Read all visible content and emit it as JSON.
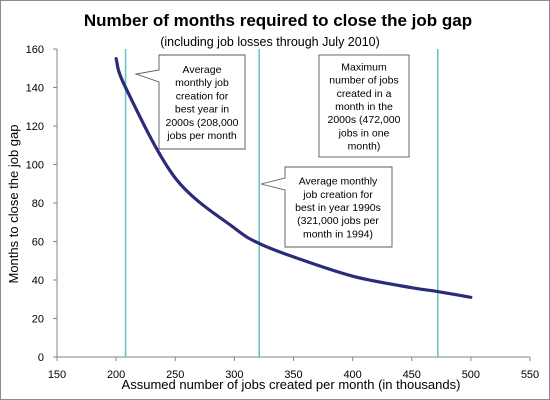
{
  "chart_data": {
    "type": "line",
    "title": "Number of months required to close the job gap",
    "subtitle": "(including job losses through July 2010)",
    "xlabel": "Assumed number of jobs created per month (in thousands)",
    "ylabel": "Months  to close the job gap",
    "xlim": [
      150,
      550
    ],
    "ylim": [
      0,
      160
    ],
    "x_ticks": [
      "150",
      "200",
      "250",
      "300",
      "350",
      "400",
      "450",
      "500",
      "550"
    ],
    "y_ticks": [
      "0",
      "20",
      "40",
      "60",
      "80",
      "100",
      "120",
      "140",
      "160"
    ],
    "grid": false,
    "series": [
      {
        "x": [
          200,
          208,
          250,
          300,
          321,
          350,
          400,
          450,
          472,
          500
        ],
        "y": [
          155,
          140,
          93,
          67,
          59,
          52,
          42,
          36,
          34,
          31
        ],
        "color": "#2b2b7a"
      }
    ],
    "reference_lines": [
      {
        "x": 208,
        "color": "#6cc4c8"
      },
      {
        "x": 321,
        "color": "#6cc4c8"
      },
      {
        "x": 472,
        "color": "#6cc4c8"
      }
    ],
    "annotations": [
      {
        "lines": [
          "Average",
          "monthly job",
          "creation for",
          "best year in",
          "2000s (208,000",
          "jobs per month"
        ]
      },
      {
        "lines": [
          "Average monthly",
          "job creation for",
          "best in year 1990s",
          "(321,000 jobs per",
          "month in 1994)"
        ]
      },
      {
        "lines": [
          "Maximum",
          "number of jobs",
          "created in a",
          "month in the",
          "2000s (472,000",
          "jobs in one",
          "month)"
        ]
      }
    ]
  }
}
